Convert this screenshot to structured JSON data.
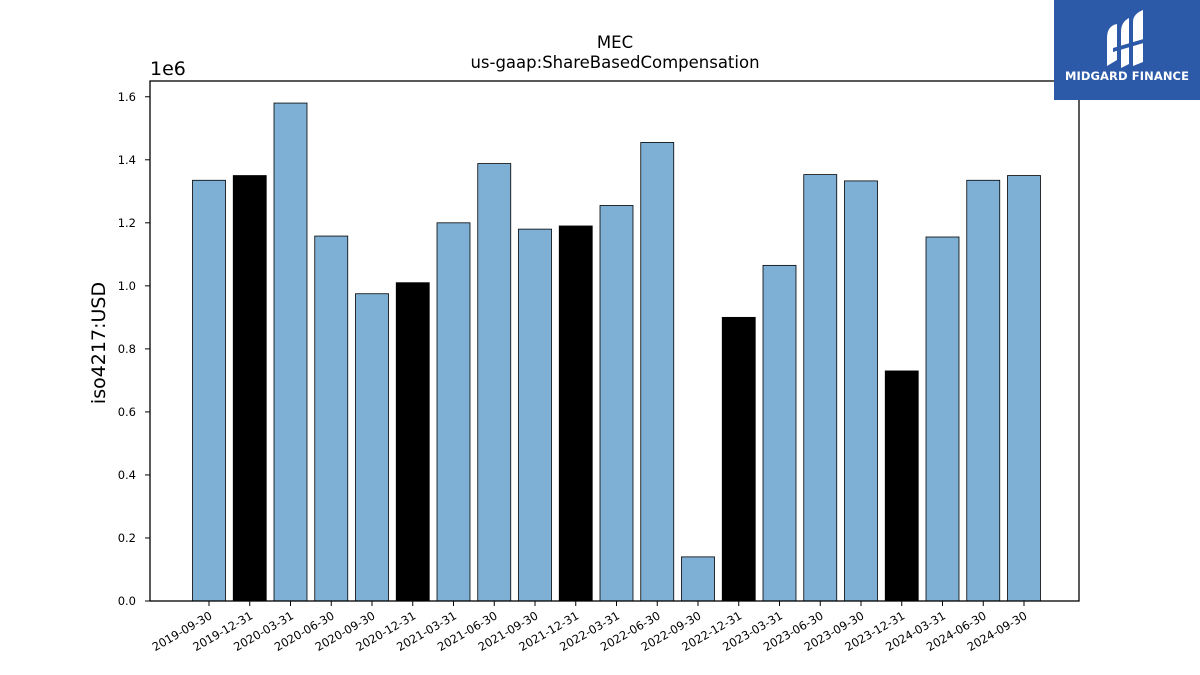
{
  "chart_data": {
    "type": "bar",
    "title": "MEC",
    "subtitle": "us-gaap:ShareBasedCompensation",
    "ylabel": "iso4217:USD",
    "xlabel": "",
    "offset_label": "1e6",
    "ylim": [
      0,
      1.65
    ],
    "yticks": [
      "0.0",
      "0.2",
      "0.4",
      "0.6",
      "0.8",
      "1.0",
      "1.2",
      "1.4",
      "1.6"
    ],
    "categories": [
      "2019-09-30",
      "2019-12-31",
      "2020-03-31",
      "2020-06-30",
      "2020-09-30",
      "2020-12-31",
      "2021-03-31",
      "2021-06-30",
      "2021-09-30",
      "2021-12-31",
      "2022-03-31",
      "2022-06-30",
      "2022-09-30",
      "2022-12-31",
      "2023-03-31",
      "2023-06-30",
      "2023-09-30",
      "2023-12-31",
      "2024-03-31",
      "2024-06-30",
      "2024-09-30"
    ],
    "values": [
      1.335,
      1.35,
      1.58,
      1.158,
      0.975,
      1.01,
      1.2,
      1.388,
      1.18,
      1.19,
      1.255,
      1.455,
      0.14,
      0.9,
      1.065,
      1.353,
      1.333,
      0.73,
      1.155,
      1.335,
      1.35
    ],
    "highlight": [
      false,
      true,
      false,
      false,
      false,
      true,
      false,
      false,
      false,
      true,
      false,
      false,
      false,
      true,
      false,
      false,
      false,
      true,
      false,
      false,
      false
    ],
    "colors": {
      "bar": "#7eb0d5",
      "highlight": "#000000",
      "edge": "#000000"
    },
    "grid": false
  },
  "logo": {
    "text": "MIDGARD FINANCE",
    "background": "#2d5aa8"
  }
}
